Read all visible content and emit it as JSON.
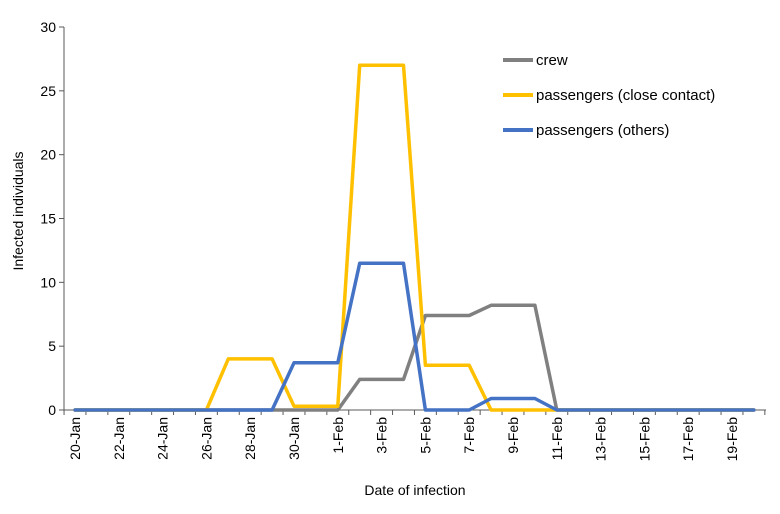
{
  "chart_data": {
    "type": "line",
    "xlabel": "Date of infection",
    "ylabel": "Infected individuals",
    "ylim": [
      0,
      30
    ],
    "yticks": [
      0,
      5,
      10,
      15,
      20,
      25,
      30
    ],
    "x": [
      "20-Jan",
      "21-Jan",
      "22-Jan",
      "23-Jan",
      "24-Jan",
      "25-Jan",
      "26-Jan",
      "27-Jan",
      "28-Jan",
      "29-Jan",
      "30-Jan",
      "31-Jan",
      "1-Feb",
      "2-Feb",
      "3-Feb",
      "4-Feb",
      "5-Feb",
      "6-Feb",
      "7-Feb",
      "8-Feb",
      "9-Feb",
      "10-Feb",
      "11-Feb",
      "12-Feb",
      "13-Feb",
      "14-Feb",
      "15-Feb",
      "16-Feb",
      "17-Feb",
      "18-Feb",
      "19-Feb",
      "20-Feb"
    ],
    "xtick_labels": [
      "20-Jan",
      "22-Jan",
      "24-Jan",
      "26-Jan",
      "28-Jan",
      "30-Jan",
      "1-Feb",
      "3-Feb",
      "5-Feb",
      "7-Feb",
      "9-Feb",
      "11-Feb",
      "13-Feb",
      "15-Feb",
      "17-Feb",
      "19-Feb"
    ],
    "grid": false,
    "legend_position": "top-right",
    "series": [
      {
        "name": "crew",
        "color": "#808080",
        "values": [
          0,
          0,
          0,
          0,
          0,
          0,
          0,
          0,
          0,
          0,
          0,
          0,
          0,
          2.4,
          2.4,
          2.4,
          7.4,
          7.4,
          7.4,
          8.2,
          8.2,
          8.2,
          0,
          0,
          0,
          0,
          0,
          0,
          0,
          0,
          0,
          0
        ]
      },
      {
        "name": "passengers (close contact)",
        "color": "#FFC000",
        "values": [
          0,
          0,
          0,
          0,
          0,
          0,
          0,
          4,
          4,
          4,
          0.3,
          0.3,
          0.3,
          27,
          27,
          27,
          3.5,
          3.5,
          3.5,
          0,
          0,
          0,
          0,
          0,
          0,
          0,
          0,
          0,
          0,
          0,
          0,
          0
        ]
      },
      {
        "name": "passengers (others)",
        "color": "#4472C4",
        "values": [
          0,
          0,
          0,
          0,
          0,
          0,
          0,
          0,
          0,
          0,
          3.7,
          3.7,
          3.7,
          11.5,
          11.5,
          11.5,
          0,
          0,
          0,
          0.9,
          0.9,
          0.9,
          0,
          0,
          0,
          0,
          0,
          0,
          0,
          0,
          0,
          0
        ]
      }
    ]
  }
}
